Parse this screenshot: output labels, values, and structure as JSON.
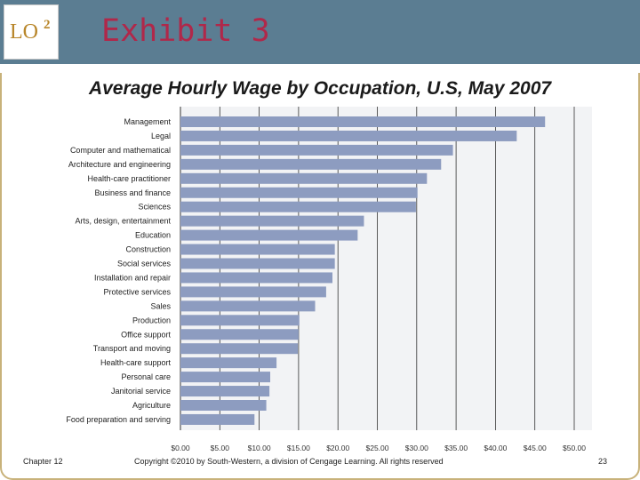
{
  "slide": {
    "lo_label": "LO",
    "lo_number": "2",
    "exhibit_title": "Exhibit 3",
    "chart_title": "Average Hourly Wage by Occupation, U.S, May 2007",
    "footer_chapter": "Chapter 12",
    "footer_copyright": "Copyright ©2010 by South-Western, a division of Cengage Learning. All rights reserved",
    "footer_page": "23"
  },
  "colors": {
    "header_bg": "#5b7d92",
    "bar": "#8d9cc0",
    "exhibit_title": "#b0284a",
    "lo_badge": "#b8862a",
    "frame": "#c8b27a"
  },
  "chart_data": {
    "type": "bar",
    "orientation": "horizontal",
    "title": "Average Hourly Wage by Occupation, U.S, May 2007",
    "xlabel": "",
    "ylabel": "",
    "xlim": [
      0,
      50
    ],
    "grid": true,
    "categories": [
      "Management",
      "Legal",
      "Computer and mathematical",
      "Architecture and engineering",
      "Health-care practitioner",
      "Business and finance",
      "Sciences",
      "Arts, design, entertainment",
      "Education",
      "Construction",
      "Social services",
      "Installation and repair",
      "Protective services",
      "Sales",
      "Production",
      "Office support",
      "Transport and moving",
      "Health-care support",
      "Personal care",
      "Janitorial service",
      "Agriculture",
      "Food preparation and serving"
    ],
    "values": [
      46.3,
      42.7,
      34.6,
      33.1,
      31.3,
      30.1,
      29.9,
      23.3,
      22.5,
      19.6,
      19.6,
      19.3,
      18.5,
      17.1,
      15.1,
      15.0,
      14.9,
      12.2,
      11.4,
      11.3,
      10.9,
      9.4
    ],
    "x_tick_labels": [
      "$0.00",
      "$5.00",
      "$10.00",
      "$15.00",
      "$20.00",
      "$25.00",
      "$30.00",
      "$35.00",
      "$40.00",
      "$45.00",
      "$50.00"
    ]
  }
}
